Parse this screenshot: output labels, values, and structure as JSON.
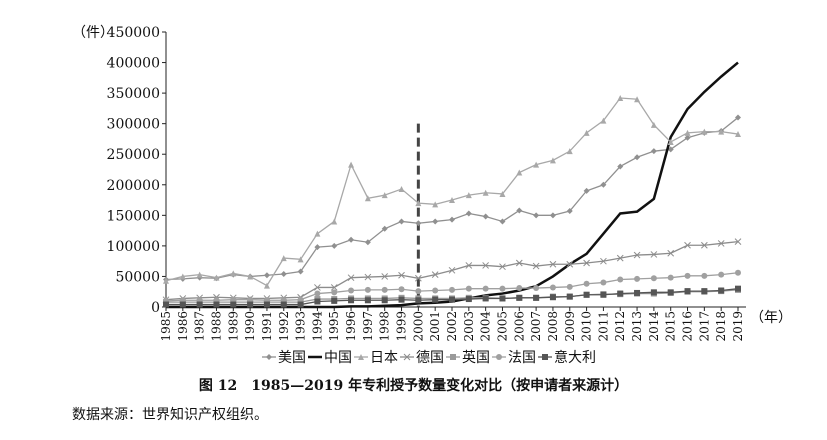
{
  "chart_data": {
    "type": "line",
    "title": "图 12　1985—2019 年专利授予数量变化对比（按申请者来源计）",
    "source": "数据来源：世界知识产权组织。",
    "y_unit": "（件）",
    "x_unit": "（年）",
    "ylim": [
      0,
      450000
    ],
    "yticks": [
      "0",
      "50000",
      "100000",
      "150000",
      "200000",
      "250000",
      "300000",
      "350000",
      "400000",
      "450000"
    ],
    "categories": [
      "1985",
      "1986",
      "1987",
      "1988",
      "1989",
      "1990",
      "1991",
      "1992",
      "1993",
      "1994",
      "1995",
      "1996",
      "1997",
      "1998",
      "1999",
      "2000",
      "2001",
      "2002",
      "2003",
      "2004",
      "2005",
      "2006",
      "2007",
      "2008",
      "2009",
      "2010",
      "2011",
      "2012",
      "2013",
      "2014",
      "2015",
      "2016",
      "2017",
      "2018",
      "2019"
    ],
    "reference_line": {
      "x": "2000",
      "style": "dashed"
    },
    "series": [
      {
        "name": "美国",
        "marker": "diamond",
        "color": "#909090",
        "values": [
          45000,
          46000,
          48000,
          47000,
          53000,
          50000,
          52000,
          54000,
          58000,
          98000,
          100000,
          110000,
          106000,
          128000,
          140000,
          137000,
          140000,
          143000,
          153000,
          148000,
          140000,
          158000,
          150000,
          150000,
          157000,
          190000,
          200000,
          230000,
          245000,
          255000,
          258000,
          277000,
          285000,
          288000,
          310000
        ]
      },
      {
        "name": "中国",
        "marker": "none",
        "color": "#111111",
        "values": [
          0,
          0,
          0,
          0,
          0,
          0,
          0,
          0,
          0,
          0,
          0,
          1000,
          1000,
          2000,
          3000,
          6000,
          7000,
          9000,
          14000,
          19000,
          22000,
          27000,
          34000,
          50000,
          70000,
          87000,
          120000,
          153000,
          156000,
          177000,
          278000,
          324000,
          352000,
          377000,
          400000
        ]
      },
      {
        "name": "日本",
        "marker": "triangle",
        "color": "#a8a8a8",
        "values": [
          43000,
          50000,
          53000,
          48000,
          55000,
          50000,
          35000,
          80000,
          78000,
          120000,
          140000,
          233000,
          178000,
          183000,
          193000,
          170000,
          168000,
          175000,
          183000,
          187000,
          185000,
          220000,
          233000,
          240000,
          255000,
          285000,
          305000,
          342000,
          340000,
          298000,
          270000,
          285000,
          287000,
          287000,
          283000
        ]
      },
      {
        "name": "德国",
        "marker": "x",
        "color": "#8c8c8c",
        "values": [
          12000,
          14000,
          15000,
          16000,
          15000,
          14000,
          14000,
          15000,
          16000,
          32000,
          32000,
          48000,
          49000,
          50000,
          52000,
          47000,
          53000,
          60000,
          68000,
          68000,
          66000,
          72000,
          67000,
          70000,
          70000,
          72000,
          75000,
          80000,
          85000,
          86000,
          88000,
          101000,
          101000,
          104000,
          107000
        ]
      },
      {
        "name": "英国",
        "marker": "square",
        "color": "#9a9a9a",
        "values": [
          8000,
          8000,
          8000,
          8000,
          8000,
          8000,
          8000,
          8000,
          8000,
          13000,
          13000,
          14000,
          14000,
          14000,
          15000,
          14000,
          14000,
          14000,
          15000,
          15000,
          14000,
          15000,
          15000,
          17000,
          17000,
          20000,
          21000,
          21000,
          22000,
          22000,
          23000,
          25000,
          25000,
          26000,
          28000
        ]
      },
      {
        "name": "法国",
        "marker": "circle",
        "color": "#a0a0a0",
        "values": [
          10000,
          11000,
          11000,
          11000,
          12000,
          12000,
          11000,
          11000,
          12000,
          22000,
          24000,
          27000,
          28000,
          28000,
          29000,
          26000,
          27000,
          28000,
          30000,
          30000,
          30000,
          31000,
          31000,
          32000,
          33000,
          38000,
          40000,
          45000,
          46000,
          47000,
          48000,
          51000,
          51000,
          53000,
          56000
        ]
      },
      {
        "name": "意大利",
        "marker": "square-filled",
        "color": "#555555",
        "values": [
          4000,
          4000,
          4000,
          4000,
          4000,
          4000,
          4000,
          4000,
          4000,
          9000,
          10000,
          11000,
          11000,
          11000,
          12000,
          11000,
          12000,
          12000,
          13000,
          14000,
          14000,
          15000,
          15000,
          16000,
          17000,
          20000,
          20000,
          22000,
          23000,
          24000,
          24000,
          26000,
          26000,
          27000,
          30000
        ]
      }
    ]
  }
}
